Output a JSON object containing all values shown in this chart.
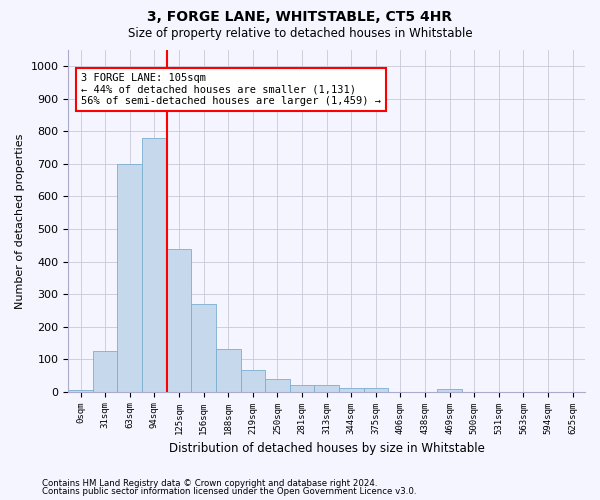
{
  "title": "3, FORGE LANE, WHITSTABLE, CT5 4HR",
  "subtitle": "Size of property relative to detached houses in Whitstable",
  "xlabel": "Distribution of detached houses by size in Whitstable",
  "ylabel": "Number of detached properties",
  "categories": [
    "0sqm",
    "31sqm",
    "63sqm",
    "94sqm",
    "125sqm",
    "156sqm",
    "188sqm",
    "219sqm",
    "250sqm",
    "281sqm",
    "313sqm",
    "344sqm",
    "375sqm",
    "406sqm",
    "438sqm",
    "469sqm",
    "500sqm",
    "531sqm",
    "563sqm",
    "594sqm",
    "625sqm"
  ],
  "bar_heights": [
    5,
    125,
    700,
    780,
    440,
    270,
    130,
    68,
    38,
    20,
    20,
    10,
    10,
    0,
    0,
    7,
    0,
    0,
    0,
    0,
    0
  ],
  "bar_color": "#c6d9ec",
  "bar_edge_color": "#7aaed0",
  "property_line_x": 3.5,
  "annotation_line1": "3 FORGE LANE: 105sqm",
  "annotation_line2": "← 44% of detached houses are smaller (1,131)",
  "annotation_line3": "56% of semi-detached houses are larger (1,459) →",
  "annotation_box_color": "white",
  "annotation_box_edge": "red",
  "red_line_color": "red",
  "ylim": [
    0,
    1050
  ],
  "yticks": [
    0,
    100,
    200,
    300,
    400,
    500,
    600,
    700,
    800,
    900,
    1000
  ],
  "footer_line1": "Contains HM Land Registry data © Crown copyright and database right 2024.",
  "footer_line2": "Contains public sector information licensed under the Open Government Licence v3.0.",
  "bg_color": "#f5f5ff",
  "grid_color": "#c8c8d8"
}
